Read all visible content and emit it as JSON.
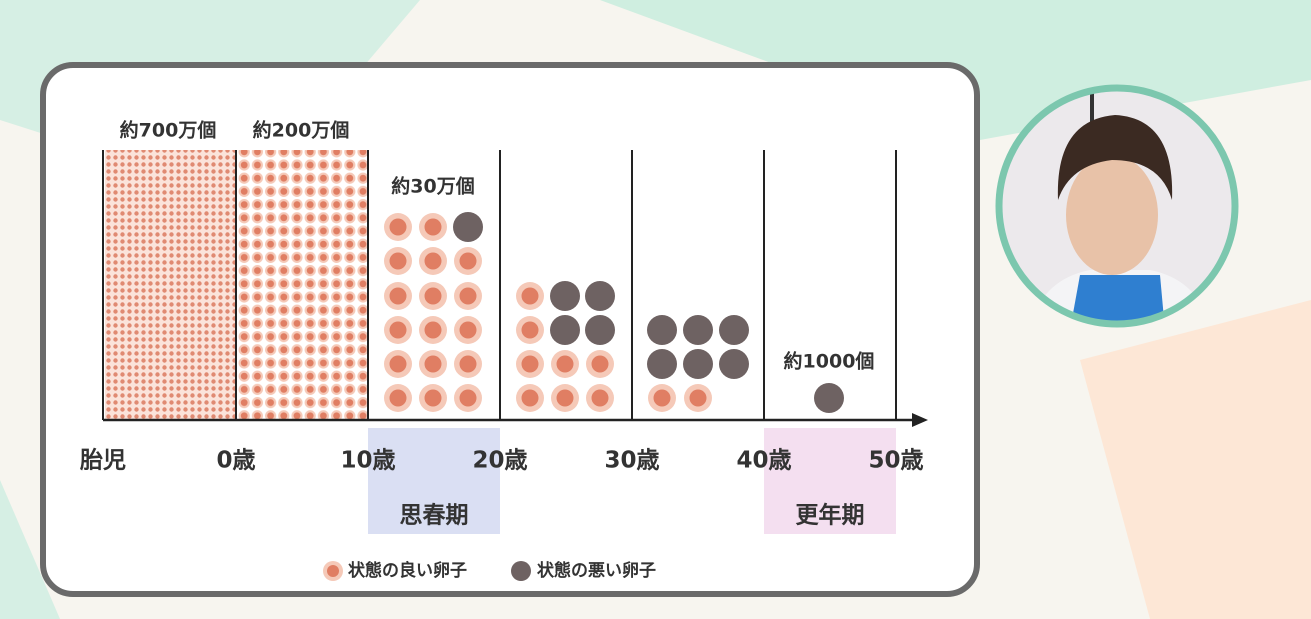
{
  "count_labels": [
    "約700万個",
    "約200万個",
    "約30万個",
    "約1000個"
  ],
  "axis_labels": [
    "胎児",
    "0歳",
    "10歳",
    "20歳",
    "30歳",
    "40歳",
    "50歳"
  ],
  "periods": [
    "思春期",
    "更年期"
  ],
  "legend": [
    "状態の良い卵子",
    "状態の悪い卵子"
  ]
}
